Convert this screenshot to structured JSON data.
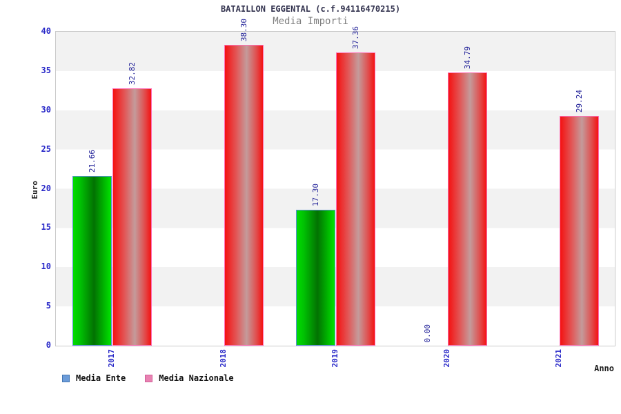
{
  "header": {
    "title": "BATAILLON EGGENTAL (c.f.94116470215)",
    "subtitle": "Media Importi"
  },
  "axes": {
    "y_label": "Euro",
    "x_label": "Anno",
    "y_ticks": [
      0,
      5,
      10,
      15,
      20,
      25,
      30,
      35,
      40
    ]
  },
  "legend": {
    "items": [
      {
        "label": "Media Ente",
        "swatch_fill": "#6c9cd9",
        "swatch_border": "#4477b3"
      },
      {
        "label": "Media Nazionale",
        "swatch_fill": "#e982b2",
        "swatch_border": "#cf5f99"
      }
    ]
  },
  "chart_data": {
    "type": "bar",
    "title": "BATAILLON EGGENTAL (c.f.94116470215)",
    "subtitle": "Media Importi",
    "categories": [
      "2017",
      "2018",
      "2019",
      "2020",
      "2021"
    ],
    "series": [
      {
        "name": "Media Ente",
        "values": [
          21.66,
          null,
          17.3,
          0.0,
          null
        ]
      },
      {
        "name": "Media Nazionale",
        "values": [
          32.82,
          38.3,
          37.36,
          34.79,
          29.24
        ]
      }
    ],
    "xlabel": "Anno",
    "ylabel": "Euro",
    "ylim": [
      0,
      40
    ],
    "grid": "horizontal-bands-every-5",
    "legend_position": "bottom-left",
    "value_label_format": "2-decimals-rotated-90",
    "colors": {
      "ente_bar_gradient": [
        "#00dc00",
        "#027202",
        "#00e400"
      ],
      "ente_bar_border": "#5e8fd8",
      "nazionale_bar_gradient": [
        "#f41212",
        "#c49b9b",
        "#f41212"
      ],
      "nazionale_bar_border": "#ff70b8",
      "band_gray": "#f2f2f2",
      "tick_label_blue": "#2828c8",
      "value_label_navy": "#1c1c96"
    }
  }
}
